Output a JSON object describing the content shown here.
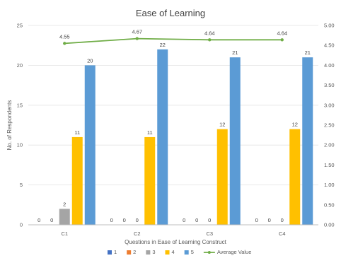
{
  "chart_data": {
    "type": "bar",
    "title": "Ease of Learning",
    "xlabel": "Questions in Ease of Learning Construct",
    "ylabel": "No. of Respondents",
    "categories": [
      "C1",
      "C2",
      "C3",
      "C4"
    ],
    "ylim": [
      0,
      25
    ],
    "yticks": [
      "0",
      "5",
      "10",
      "15",
      "20",
      "25"
    ],
    "y2lim": [
      0,
      5
    ],
    "y2ticks": [
      "0.00",
      "0.50",
      "1.00",
      "1.50",
      "2.00",
      "2.50",
      "3.00",
      "3.50",
      "4.00",
      "4.50",
      "5.00"
    ],
    "series": [
      {
        "name": "1",
        "color": "#4472C4",
        "values": [
          0,
          0,
          0,
          0
        ]
      },
      {
        "name": "2",
        "color": "#ED7D31",
        "values": [
          0,
          0,
          0,
          0
        ]
      },
      {
        "name": "3",
        "color": "#A5A5A5",
        "values": [
          2,
          0,
          0,
          0
        ]
      },
      {
        "name": "4",
        "color": "#FFC000",
        "values": [
          11,
          11,
          12,
          12
        ]
      },
      {
        "name": "5",
        "color": "#5B9BD5",
        "values": [
          20,
          22,
          21,
          21
        ]
      }
    ],
    "line_series": {
      "name": "Average Value",
      "color": "#70AD47",
      "axis": "secondary",
      "values": [
        4.55,
        4.67,
        4.64,
        4.64
      ],
      "labels": [
        "4.55",
        "4.67",
        "4.64",
        "4.64"
      ]
    },
    "grid": true,
    "legend": "bottom"
  }
}
